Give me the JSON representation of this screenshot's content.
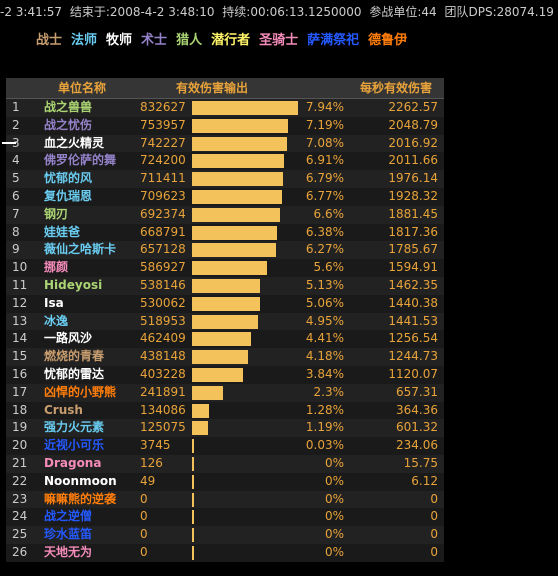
{
  "topbar": {
    "start": "-2 3:41:57",
    "end_label": "结束于:",
    "end": "2008-4-2 3:48:10",
    "duration_label": "持续:",
    "duration": "00:06:13.1250000",
    "units_label": "参战单位:",
    "units": "44",
    "dps_label": "团队DPS:",
    "dps": "28074.19"
  },
  "classes": [
    {
      "label": "战士",
      "color": "#c79c6e"
    },
    {
      "label": "法师",
      "color": "#69ccf0"
    },
    {
      "label": "牧师",
      "color": "#ffffff"
    },
    {
      "label": "术士",
      "color": "#9482c9"
    },
    {
      "label": "猎人",
      "color": "#abd473"
    },
    {
      "label": "潜行者",
      "color": "#fff569"
    },
    {
      "label": "圣骑士",
      "color": "#f58cba"
    },
    {
      "label": "萨满祭祀",
      "color": "#2459ff"
    },
    {
      "label": "德鲁伊",
      "color": "#ff7d0a"
    }
  ],
  "table": {
    "headers": {
      "name": "单位名称",
      "damage": "有效伤害输出",
      "dps": "每秒有效伤害"
    },
    "rows": [
      {
        "rank": "1",
        "name": "战之兽兽",
        "color": "#abd473",
        "damage": "832627",
        "pct": "7.94%",
        "dps": "2262.57",
        "share": 7.94
      },
      {
        "rank": "2",
        "name": "战之忧伤",
        "color": "#9482c9",
        "damage": "753957",
        "pct": "7.19%",
        "dps": "2048.79",
        "share": 7.19
      },
      {
        "rank": "3",
        "name": "血之火精灵",
        "color": "#ffffff",
        "damage": "742227",
        "pct": "7.08%",
        "dps": "2016.92",
        "share": 7.08
      },
      {
        "rank": "4",
        "name": "佛罗伦萨的舞",
        "color": "#9482c9",
        "damage": "724200",
        "pct": "6.91%",
        "dps": "2011.66",
        "share": 6.91
      },
      {
        "rank": "5",
        "name": "忧郁的风",
        "color": "#69ccf0",
        "damage": "711411",
        "pct": "6.79%",
        "dps": "1976.14",
        "share": 6.79
      },
      {
        "rank": "6",
        "name": "复仇瑞恩",
        "color": "#69ccf0",
        "damage": "709623",
        "pct": "6.77%",
        "dps": "1928.32",
        "share": 6.77
      },
      {
        "rank": "7",
        "name": "钢刃",
        "color": "#abd473",
        "damage": "692374",
        "pct": "6.6%",
        "dps": "1881.45",
        "share": 6.6
      },
      {
        "rank": "8",
        "name": "娃娃爸",
        "color": "#69ccf0",
        "damage": "668791",
        "pct": "6.38%",
        "dps": "1817.36",
        "share": 6.38
      },
      {
        "rank": "9",
        "name": "薇仙之哈斯卡",
        "color": "#69ccf0",
        "damage": "657128",
        "pct": "6.27%",
        "dps": "1785.67",
        "share": 6.27
      },
      {
        "rank": "10",
        "name": "挪颜",
        "color": "#f58cba",
        "damage": "586927",
        "pct": "5.6%",
        "dps": "1594.91",
        "share": 5.6
      },
      {
        "rank": "11",
        "name": "Hideyosi",
        "color": "#abd473",
        "damage": "538146",
        "pct": "5.13%",
        "dps": "1462.35",
        "share": 5.13
      },
      {
        "rank": "12",
        "name": "Isa",
        "color": "#ffffff",
        "damage": "530062",
        "pct": "5.06%",
        "dps": "1440.38",
        "share": 5.06
      },
      {
        "rank": "13",
        "name": "冰逸",
        "color": "#69ccf0",
        "damage": "518953",
        "pct": "4.95%",
        "dps": "1441.53",
        "share": 4.95
      },
      {
        "rank": "14",
        "name": "一路风沙",
        "color": "#ffffff",
        "damage": "462409",
        "pct": "4.41%",
        "dps": "1256.54",
        "share": 4.41
      },
      {
        "rank": "15",
        "name": "燃烧的青春",
        "color": "#c79c6e",
        "damage": "438148",
        "pct": "4.18%",
        "dps": "1244.73",
        "share": 4.18
      },
      {
        "rank": "16",
        "name": "忧郁的雷达",
        "color": "#ffffff",
        "damage": "403228",
        "pct": "3.84%",
        "dps": "1120.07",
        "share": 3.84
      },
      {
        "rank": "17",
        "name": "凶悍的小野熊",
        "color": "#ff7d0a",
        "damage": "241891",
        "pct": "2.3%",
        "dps": "657.31",
        "share": 2.3
      },
      {
        "rank": "18",
        "name": "Crush",
        "color": "#c79c6e",
        "damage": "134086",
        "pct": "1.28%",
        "dps": "364.36",
        "share": 1.28
      },
      {
        "rank": "19",
        "name": "强力火元素",
        "color": "#69ccf0",
        "damage": "125075",
        "pct": "1.19%",
        "dps": "601.32",
        "share": 1.19
      },
      {
        "rank": "20",
        "name": "近视小可乐",
        "color": "#2459ff",
        "damage": "3745",
        "pct": "0.03%",
        "dps": "234.06",
        "share": 0.03
      },
      {
        "rank": "21",
        "name": "Dragona",
        "color": "#f58cba",
        "damage": "126",
        "pct": "0%",
        "dps": "15.75",
        "share": 0
      },
      {
        "rank": "22",
        "name": "Noonmoon",
        "color": "#ffffff",
        "damage": "49",
        "pct": "0%",
        "dps": "6.12",
        "share": 0
      },
      {
        "rank": "23",
        "name": "嘛嘛熊的逆袭",
        "color": "#ff7d0a",
        "damage": "0",
        "pct": "0%",
        "dps": "0",
        "share": 0
      },
      {
        "rank": "24",
        "name": "战之逆僧",
        "color": "#2459ff",
        "damage": "0",
        "pct": "0%",
        "dps": "0",
        "share": 0
      },
      {
        "rank": "25",
        "name": "珍水蓝笛",
        "color": "#2459ff",
        "damage": "0",
        "pct": "0%",
        "dps": "0",
        "share": 0
      },
      {
        "rank": "26",
        "name": "天地无为",
        "color": "#f58cba",
        "damage": "0",
        "pct": "0%",
        "dps": "0",
        "share": 0
      }
    ]
  },
  "colors": {
    "bar": "#f3c25a",
    "accent": "#e8a33a"
  }
}
